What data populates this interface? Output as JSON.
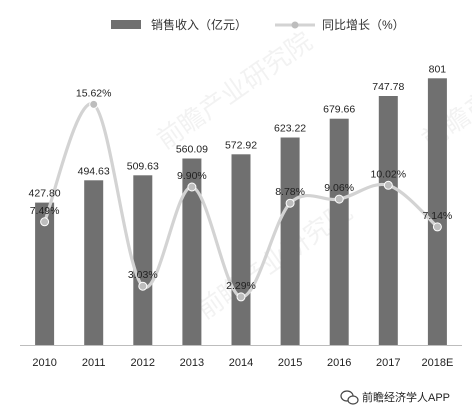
{
  "chart_data": {
    "type": "bar",
    "categories": [
      "2010",
      "2011",
      "2012",
      "2013",
      "2014",
      "2015",
      "2016",
      "2017",
      "2018E"
    ],
    "series": [
      {
        "name": "销售收入（亿元）",
        "type": "bar",
        "axis": "left",
        "values": [
          427.8,
          494.63,
          509.63,
          560.09,
          572.92,
          623.22,
          679.66,
          747.78,
          801
        ],
        "labels": [
          "427.80",
          "494.63",
          "509.63",
          "560.09",
          "572.92",
          "623.22",
          "679.66",
          "747.78",
          "801"
        ]
      },
      {
        "name": "同比增长（%）",
        "type": "line",
        "smooth": true,
        "axis": "right",
        "values": [
          7.49,
          15.62,
          3.03,
          9.9,
          2.29,
          8.78,
          9.06,
          10.02,
          7.14
        ],
        "labels": [
          "7.49%",
          "15.62%",
          "3.03%",
          "9.90%",
          "2.29%",
          "8.78%",
          "9.06%",
          "10.02%",
          "7.14%"
        ]
      }
    ],
    "bar_ylim": [
      0,
      850
    ],
    "line_ylim": [
      0,
      18
    ],
    "legend_position": "top",
    "grid": false,
    "colors": {
      "bar": "#707070",
      "line": "#d3d3d3",
      "marker": "#bdbdbd"
    }
  },
  "source": {
    "icon": "wechat-icon",
    "text": "前瞻经济学人APP"
  },
  "watermark": {
    "text": "前瞻产业研究院",
    "icon": "logo-icon"
  }
}
